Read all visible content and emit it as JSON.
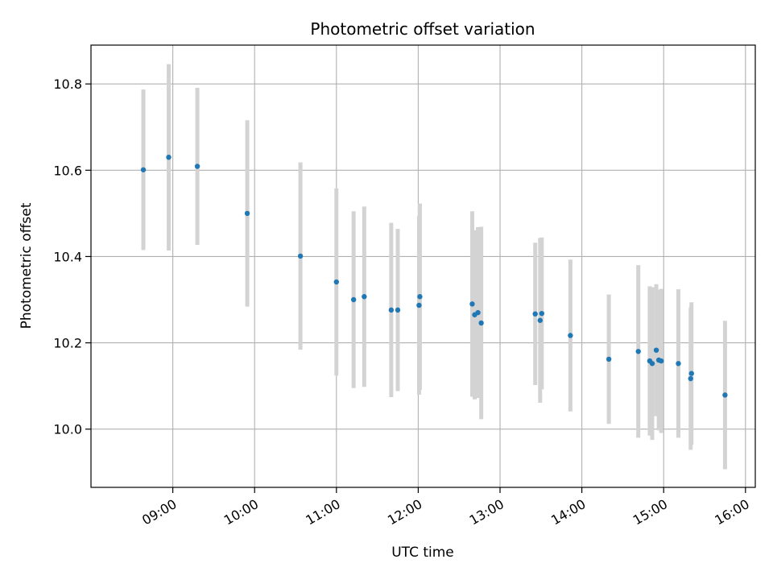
{
  "chart_data": {
    "type": "scatter",
    "title": "Photometric offset variation",
    "xlabel": "UTC time",
    "ylabel": "Photometric offset",
    "grid": true,
    "xlim_hours": [
      8.0,
      16.12
    ],
    "ylim": [
      9.865,
      10.89
    ],
    "x_tick_hours": [
      9,
      10,
      11,
      12,
      13,
      14,
      15,
      16
    ],
    "x_tick_labels": [
      "09:00",
      "10:00",
      "11:00",
      "12:00",
      "13:00",
      "14:00",
      "15:00",
      "16:00"
    ],
    "y_ticks": [
      10.0,
      10.2,
      10.4,
      10.6,
      10.8
    ],
    "y_tick_labels": [
      "10.0",
      "10.2",
      "10.4",
      "10.6",
      "10.8"
    ],
    "colors": {
      "marker": "#1f77b4",
      "errorbar": "#d3d3d3",
      "grid": "#b0b0b0"
    },
    "points": [
      {
        "t": 8.64,
        "y": 10.601,
        "err": 0.186
      },
      {
        "t": 8.95,
        "y": 10.63,
        "err": 0.216
      },
      {
        "t": 9.3,
        "y": 10.609,
        "err": 0.182
      },
      {
        "t": 9.91,
        "y": 10.5,
        "err": 0.216
      },
      {
        "t": 10.56,
        "y": 10.401,
        "err": 0.217
      },
      {
        "t": 11.0,
        "y": 10.341,
        "err": 0.217
      },
      {
        "t": 11.21,
        "y": 10.3,
        "err": 0.205
      },
      {
        "t": 11.34,
        "y": 10.307,
        "err": 0.209
      },
      {
        "t": 11.67,
        "y": 10.276,
        "err": 0.202
      },
      {
        "t": 11.75,
        "y": 10.276,
        "err": 0.188
      },
      {
        "t": 12.01,
        "y": 10.287,
        "err": 0.207
      },
      {
        "t": 12.02,
        "y": 10.307,
        "err": 0.216
      },
      {
        "t": 12.66,
        "y": 10.29,
        "err": 0.215
      },
      {
        "t": 12.69,
        "y": 10.265,
        "err": 0.196
      },
      {
        "t": 12.73,
        "y": 10.27,
        "err": 0.198
      },
      {
        "t": 12.77,
        "y": 10.246,
        "err": 0.223
      },
      {
        "t": 13.43,
        "y": 10.267,
        "err": 0.165
      },
      {
        "t": 13.49,
        "y": 10.252,
        "err": 0.191
      },
      {
        "t": 13.51,
        "y": 10.268,
        "err": 0.176
      },
      {
        "t": 13.86,
        "y": 10.217,
        "err": 0.176
      },
      {
        "t": 14.33,
        "y": 10.162,
        "err": 0.15
      },
      {
        "t": 14.69,
        "y": 10.18,
        "err": 0.2
      },
      {
        "t": 14.83,
        "y": 10.158,
        "err": 0.173
      },
      {
        "t": 14.86,
        "y": 10.152,
        "err": 0.177
      },
      {
        "t": 14.91,
        "y": 10.183,
        "err": 0.153
      },
      {
        "t": 14.94,
        "y": 10.16,
        "err": 0.163
      },
      {
        "t": 14.97,
        "y": 10.158,
        "err": 0.167
      },
      {
        "t": 15.18,
        "y": 10.152,
        "err": 0.172
      },
      {
        "t": 15.33,
        "y": 10.117,
        "err": 0.165
      },
      {
        "t": 15.34,
        "y": 10.129,
        "err": 0.165
      },
      {
        "t": 15.75,
        "y": 10.079,
        "err": 0.172
      }
    ]
  }
}
